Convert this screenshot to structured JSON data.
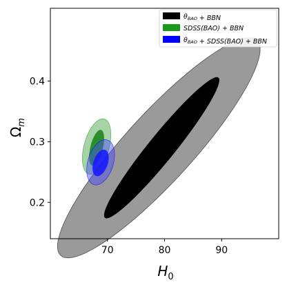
{
  "chart_data": {
    "type": "contour",
    "xlabel_main": "H",
    "xlabel_sub": "0",
    "ylabel_main": "Ω",
    "ylabel_sub": "m",
    "xlim": [
      60,
      100
    ],
    "ylim": [
      0.14,
      0.52
    ],
    "xticks": [
      70,
      80,
      90
    ],
    "yticks": [
      0.2,
      0.3,
      0.4
    ],
    "legend_position": "top-right",
    "series": [
      {
        "name": "θ_BAO + BBN",
        "legend": [
          {
            "t": "θ",
            "style": "normal"
          },
          {
            "t": "BAO",
            "style": "sub"
          },
          {
            "t": " + BBN",
            "style": "normal"
          }
        ],
        "color": "#000000",
        "outer": {
          "cx": 79.0,
          "cy": 0.29,
          "axis1": [
            17.5,
            0.174
          ],
          "axis2": [
            -3.0,
            0.052
          ],
          "fill": "#9a9a9a"
        },
        "inner": {
          "cx": 79.5,
          "cy": 0.29,
          "axis1": [
            10.0,
            0.115
          ],
          "axis2": [
            -1.4,
            0.018
          ],
          "fill": "#000000"
        }
      },
      {
        "name": "SDSS(BAO) + BBN",
        "legend": [
          {
            "t": "SDSS(BAO) + BBN",
            "style": "normal"
          }
        ],
        "color": "#1a9a1a",
        "outer": {
          "cx": 68.1,
          "cy": 0.292,
          "axis1": [
            1.5,
            0.045
          ],
          "axis2": [
            -2.0,
            0.009
          ],
          "fill": "rgba(60,160,60,0.45)"
        },
        "inner": {
          "cx": 68.1,
          "cy": 0.29,
          "axis1": [
            0.85,
            0.029
          ],
          "axis2": [
            -1.0,
            0.005
          ],
          "fill": "rgba(20,130,20,0.85)"
        }
      },
      {
        "name": "θ_BAO + SDSS(BAO) + BBN",
        "legend": [
          {
            "t": "θ",
            "style": "normal"
          },
          {
            "t": "BAO",
            "style": "sub"
          },
          {
            "t": " + SDSS(BAO) + BBN",
            "style": "normal"
          }
        ],
        "color": "#0000ff",
        "outer": {
          "cx": 68.8,
          "cy": 0.266,
          "axis1": [
            1.4,
            0.036
          ],
          "axis2": [
            -2.0,
            0.01
          ],
          "fill": "rgba(70,70,255,0.45)"
        },
        "inner": {
          "cx": 68.8,
          "cy": 0.265,
          "axis1": [
            0.9,
            0.021
          ],
          "axis2": [
            -1.1,
            0.006
          ],
          "fill": "rgba(20,20,255,0.85)"
        }
      }
    ]
  }
}
